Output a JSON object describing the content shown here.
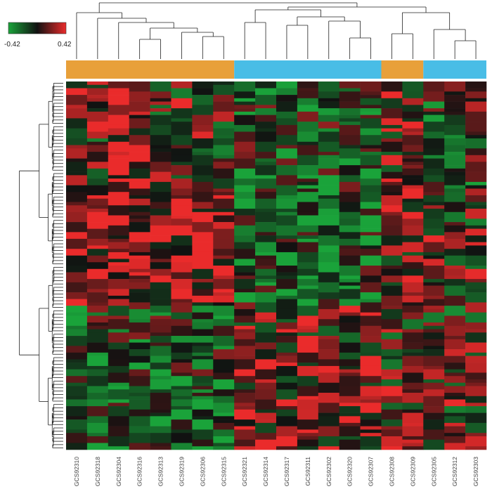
{
  "chart_data": {
    "type": "heatmap",
    "title": "",
    "color_scale": {
      "min": -0.42,
      "max": 0.42,
      "min_label": "-0.42",
      "max_label": "0.42",
      "low_color": "#1aa33a",
      "mid_color": "#111111",
      "high_color": "#ea2b2b"
    },
    "columns": [
      "GCS92310",
      "GCS92318",
      "GCS92304",
      "GCS92316",
      "GCS92313",
      "GCS92319",
      "GCS92306",
      "GCS92315",
      "GCS92321",
      "GCS92314",
      "GCS92317",
      "GCS92311",
      "GCS92302",
      "GCS92320",
      "GCS92307",
      "GCS92308",
      "GCS92309",
      "GCS92305",
      "GCS92312",
      "GCS92303"
    ],
    "column_groups": [
      {
        "color": "#e8a03a",
        "span": [
          0,
          7
        ]
      },
      {
        "color": "#49bde6",
        "span": [
          8,
          14
        ]
      },
      {
        "color": "#e8a03a",
        "span": [
          15,
          16
        ]
      },
      {
        "color": "#49bde6",
        "span": [
          17,
          19
        ]
      }
    ],
    "n_rows": 110,
    "row_dendrogram": true,
    "column_dendrogram": true
  }
}
